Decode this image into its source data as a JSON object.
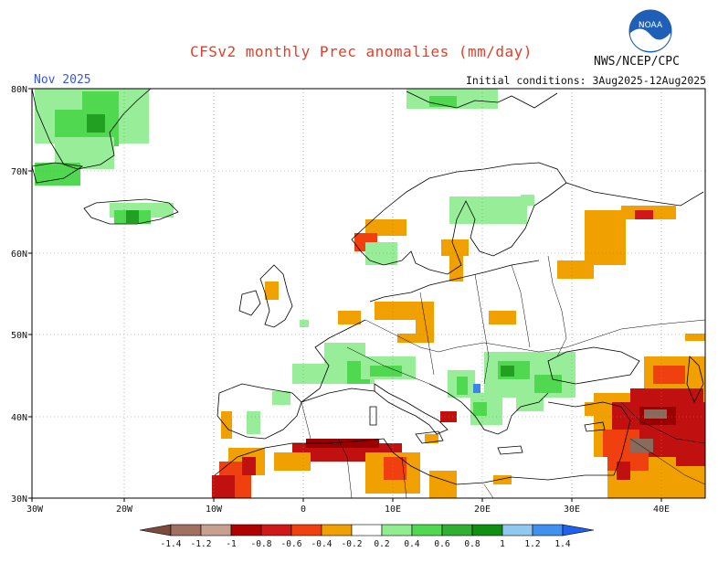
{
  "header": {
    "title": "CFSv2 monthly Prec anomalies (mm/day)",
    "month": "Nov 2025",
    "initial_conditions": "Initial conditions: 3Aug2025-12Aug2025",
    "agency": "NWS/NCEP/CPC",
    "logo_text": "NOAA"
  },
  "axes": {
    "lat_labels": [
      "80N",
      "70N",
      "60N",
      "50N",
      "40N",
      "30N"
    ],
    "lon_labels": [
      "30W",
      "20W",
      "10W",
      "0",
      "10E",
      "20E",
      "30E",
      "40E"
    ]
  },
  "colorbar": {
    "labels": [
      "-1.4",
      "-1.2",
      "-1",
      "-0.8",
      "-0.6",
      "-0.4",
      "-0.2",
      "0.2",
      "0.4",
      "0.6",
      "0.8",
      "1",
      "1.2",
      "1.4"
    ],
    "colors": [
      "#7a4a3a",
      "#a07060",
      "#c8a090",
      "#b00000",
      "#d01818",
      "#f04010",
      "#f0a000",
      "#ffffff",
      "#90ee90",
      "#50d850",
      "#30b030",
      "#109010",
      "#90c8f0",
      "#4090f0",
      "#2060f0"
    ]
  },
  "anomaly_colors": {
    "dry_light": "#f0a000",
    "dry_mid": "#f04010",
    "dry_strong": "#c01010",
    "dry_vstrong": "#9a0000",
    "dry_brown": "#8a6a5a",
    "wet_light": "#98ee98",
    "wet_mid": "#50d850",
    "wet_strong": "#22a022",
    "wet_vstrong": "#0f8a0f",
    "wet_blue": "#3a86e8"
  }
}
